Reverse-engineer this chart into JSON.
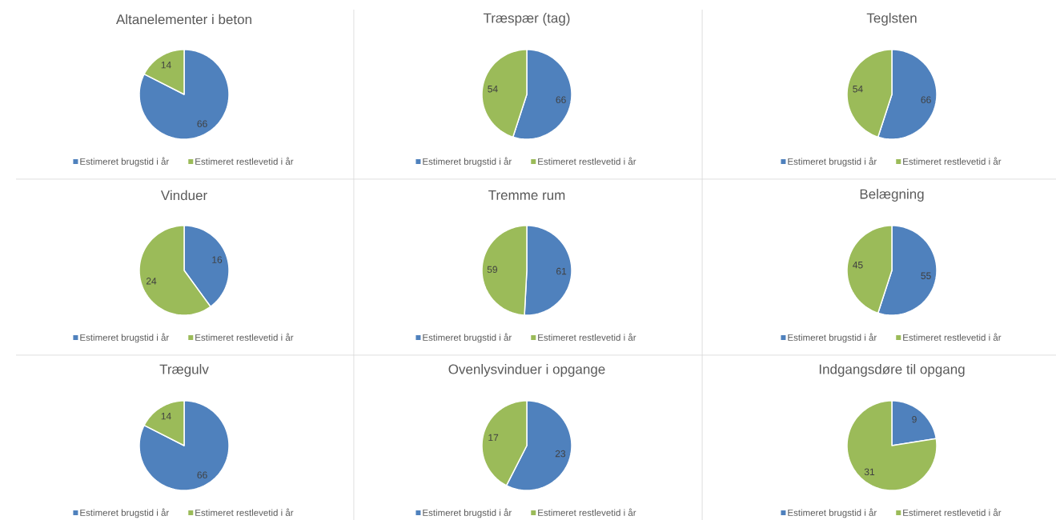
{
  "chart_data": [
    {
      "type": "pie",
      "title": "Altanelementer i beton",
      "categories": [
        "Estimeret brugstid i år",
        "Estimeret restlevetid i år"
      ],
      "values": [
        66,
        14
      ],
      "colors": [
        "#4f81bd",
        "#9bbb59"
      ],
      "data_labels": true,
      "legend": "bottom"
    },
    {
      "type": "pie",
      "title": "Træspær (tag)",
      "categories": [
        "Estimeret brugstid i år",
        "Estimeret restlevetid i år"
      ],
      "values": [
        66,
        54
      ],
      "colors": [
        "#4f81bd",
        "#9bbb59"
      ],
      "data_labels": true,
      "legend": "bottom"
    },
    {
      "type": "pie",
      "title": "Teglsten",
      "categories": [
        "Estimeret brugstid i år",
        "Estimeret restlevetid i år"
      ],
      "values": [
        66,
        54
      ],
      "colors": [
        "#4f81bd",
        "#9bbb59"
      ],
      "data_labels": true,
      "legend": "bottom"
    },
    {
      "type": "pie",
      "title": "Vinduer",
      "categories": [
        "Estimeret brugstid i år",
        "Estimeret restlevetid i år"
      ],
      "values": [
        16,
        24
      ],
      "colors": [
        "#4f81bd",
        "#9bbb59"
      ],
      "data_labels": true,
      "legend": "bottom"
    },
    {
      "type": "pie",
      "title": "Tremme rum",
      "categories": [
        "Estimeret brugstid i år",
        "Estimeret restlevetid i år"
      ],
      "values": [
        61,
        59
      ],
      "colors": [
        "#4f81bd",
        "#9bbb59"
      ],
      "data_labels": true,
      "legend": "bottom"
    },
    {
      "type": "pie",
      "title": "Belægning",
      "categories": [
        "Estimeret brugstid i år",
        "Estimeret restlevetid i år"
      ],
      "values": [
        55,
        45
      ],
      "colors": [
        "#4f81bd",
        "#9bbb59"
      ],
      "data_labels": true,
      "legend": "bottom"
    },
    {
      "type": "pie",
      "title": "Trægulv",
      "categories": [
        "Estimeret brugstid i år",
        "Estimeret restlevetid i år"
      ],
      "values": [
        66,
        14
      ],
      "colors": [
        "#4f81bd",
        "#9bbb59"
      ],
      "data_labels": true,
      "legend": "bottom"
    },
    {
      "type": "pie",
      "title": "Ovenlysvinduer i opgange",
      "categories": [
        "Estimeret brugstid i år",
        "Estimeret restlevetid i år"
      ],
      "values": [
        23,
        17
      ],
      "colors": [
        "#4f81bd",
        "#9bbb59"
      ],
      "data_labels": true,
      "legend": "bottom"
    },
    {
      "type": "pie",
      "title": "Indgangsdøre til opgang",
      "categories": [
        "Estimeret brugstid i år",
        "Estimeret restlevetid i år"
      ],
      "values": [
        9,
        31
      ],
      "colors": [
        "#4f81bd",
        "#9bbb59"
      ],
      "data_labels": true,
      "legend": "bottom"
    }
  ]
}
